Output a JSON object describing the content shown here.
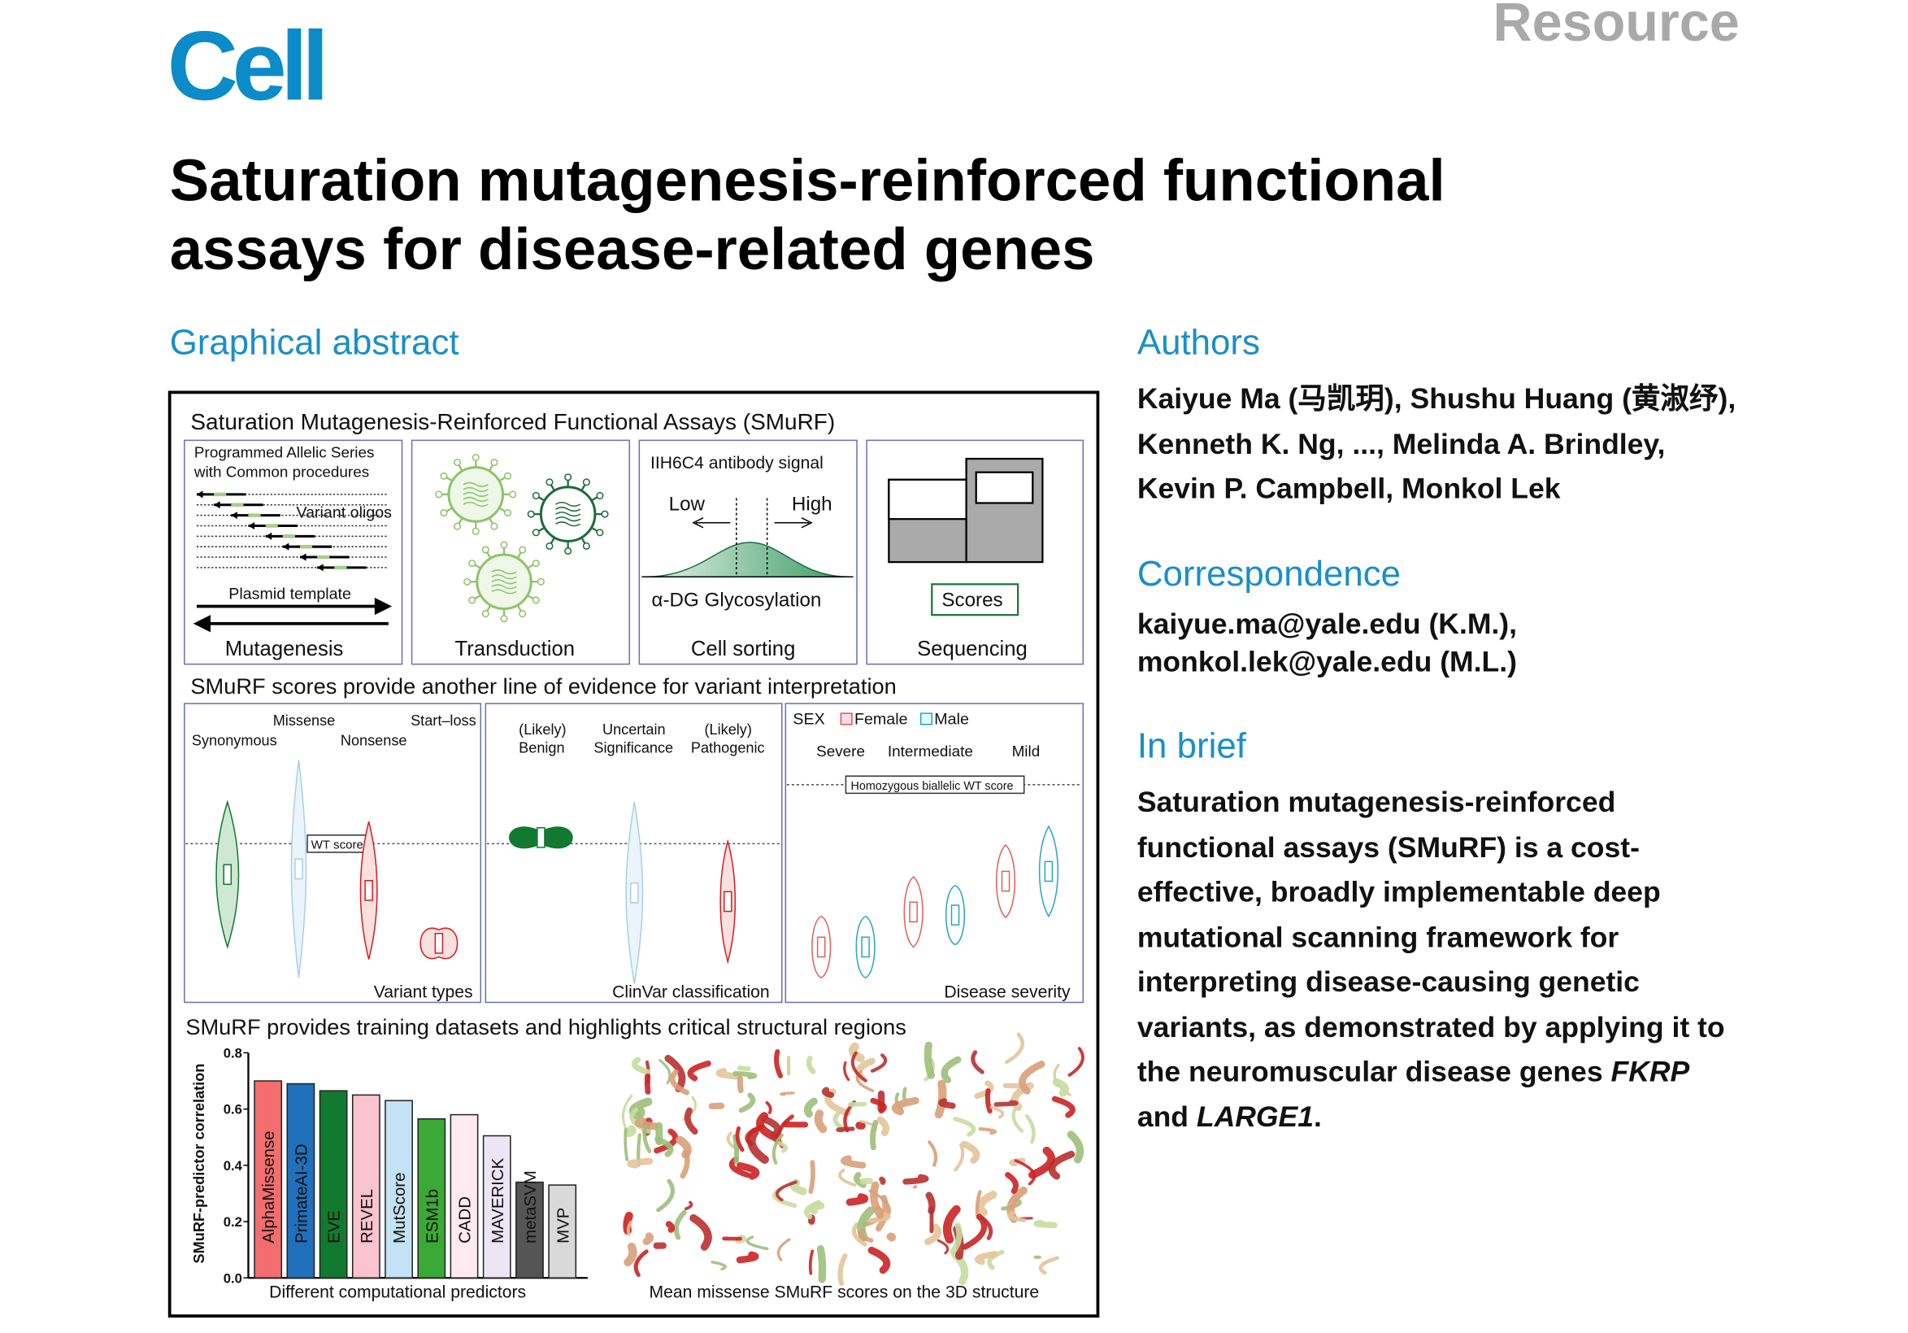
{
  "header": {
    "journal": "Cell",
    "article_type": "Resource",
    "title": "Saturation mutagenesis-reinforced functional assays for disease-related genes"
  },
  "graphical_abstract": {
    "heading": "Graphical abstract",
    "title": "Saturation Mutagenesis-Reinforced Functional Assays (SMuRF)",
    "steps": [
      {
        "label": "Mutagenesis",
        "texts": [
          "Programmed Allelic Series",
          "with Common procedures",
          "Variant oligos",
          "Plasmid template"
        ]
      },
      {
        "label": "Transduction"
      },
      {
        "label": "Cell sorting",
        "texts": [
          "IIH6C4 antibody signal",
          "Low",
          "High",
          "α-DG Glycosylation"
        ]
      },
      {
        "label": "Sequencing",
        "texts": [
          "Scores"
        ]
      }
    ],
    "evidence": {
      "title": "SMuRF scores provide another line of evidence for variant interpretation",
      "panels": [
        {
          "label": "Variant types",
          "texts": [
            "Missense",
            "Start–loss",
            "Synonymous",
            "Nonsense",
            "WT score"
          ]
        },
        {
          "label": "ClinVar classification",
          "texts": [
            "(Likely)",
            "Benign",
            "Uncertain",
            "Significance",
            "(Likely)",
            "Pathogenic"
          ]
        },
        {
          "label": "Disease severity",
          "texts": [
            "SEX",
            "Female",
            "Male",
            "Severe",
            "Intermediate",
            "Mild",
            "Homozygous biallelic WT score"
          ]
        }
      ]
    },
    "structure": {
      "title": "SMuRF provides training datasets and highlights critical structural regions",
      "caption": "Mean missense SMuRF scores on the 3D structure"
    }
  },
  "chart_data": {
    "type": "bar",
    "y_label": "SMuRF-predictor correlation",
    "x_label": "Different computational predictors",
    "categories": [
      "AlphaMissense",
      "PrimateAI-3D",
      "EVE",
      "REVEL",
      "MutScore",
      "ESM1b",
      "CADD",
      "MAVERICK",
      "metaSVM",
      "MVP"
    ],
    "values": [
      0.7,
      0.69,
      0.665,
      0.65,
      0.63,
      0.565,
      0.58,
      0.505,
      0.34,
      0.33
    ],
    "colors": [
      "#f26d6d",
      "#2070bb",
      "#117a30",
      "#f9c3cf",
      "#c3e2f3",
      "#3ba935",
      "#fdeaf0",
      "#ece6f4",
      "#555555",
      "#d9d9d9"
    ],
    "ylim": [
      0,
      0.8
    ],
    "yticks": [
      {
        "value": 0,
        "label": "0.0"
      },
      {
        "value": 0.2,
        "label": "0.2"
      },
      {
        "value": 0.4,
        "label": "0.4"
      },
      {
        "value": 0.6,
        "label": "0.6"
      },
      {
        "value": 0.8,
        "label": "0.8"
      }
    ]
  },
  "authors": {
    "heading": "Authors",
    "text": "Kaiyue Ma (马凯玥), Shushu Huang (黄淑纾), Kenneth K. Ng, ..., Melinda A. Brindley, Kevin P. Campbell, Monkol Lek"
  },
  "correspondence": {
    "heading": "Correspondence",
    "emails": [
      "kaiyue.ma@yale.edu (K.M.),",
      "monkol.lek@yale.edu (M.L.)"
    ]
  },
  "in_brief": {
    "heading": "In brief",
    "parts": [
      "Saturation mutagenesis-reinforced functional assays (SMuRF) is a cost-effective, broadly implementable deep mutational scanning framework for interpreting disease-causing genetic variants, as demonstrated by applying it to the neuromuscular disease genes ",
      "FKRP",
      " and ",
      "LARGE1",
      "."
    ]
  }
}
